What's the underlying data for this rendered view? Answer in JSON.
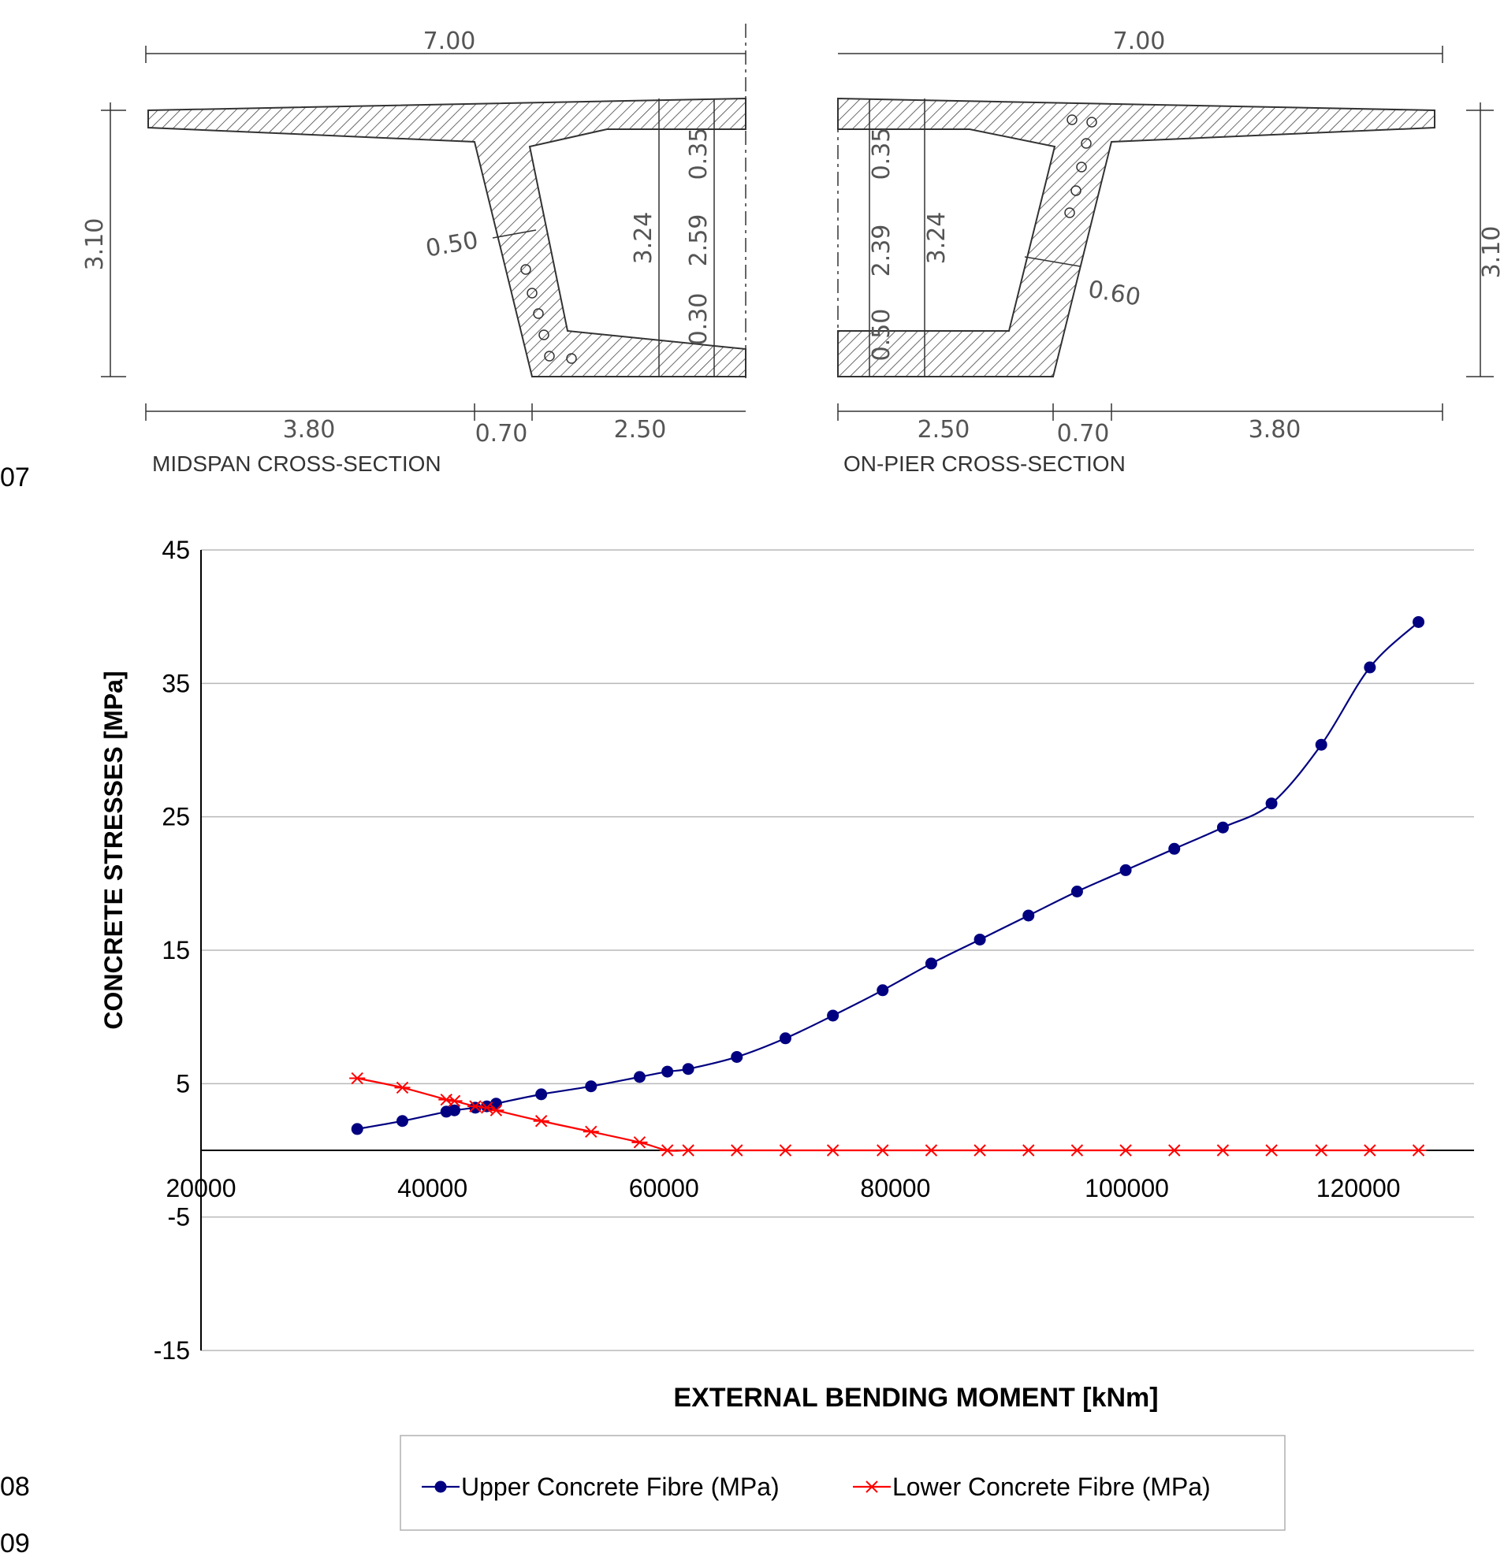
{
  "page": {
    "margin_numbers": [
      "07",
      "08",
      "09"
    ]
  },
  "diagram": {
    "midspan": {
      "caption": "MIDSPAN CROSS-SECTION",
      "top_width": "7.00",
      "height": "3.10",
      "web_thickness": "0.50",
      "top_slab": "0.35",
      "inner_height": "2.59",
      "bottom_slab": "0.30",
      "total_inner": "3.24",
      "bottom_dims": [
        "3.80",
        "0.70",
        "2.50"
      ]
    },
    "onpier": {
      "caption": "ON-PIER CROSS-SECTION",
      "top_width": "7.00",
      "height": "3.10",
      "web_thickness": "0.60",
      "top_slab": "0.35",
      "inner_height": "2.39",
      "bottom_slab": "0.50",
      "total_inner": "3.24",
      "bottom_dims": [
        "2.50",
        "0.70",
        "3.80"
      ]
    }
  },
  "chart_data": {
    "type": "line",
    "title": "",
    "xlabel": "EXTERNAL BENDING MOMENT [kNm]",
    "ylabel": "CONCRETE STRESSES [MPa]",
    "xlim": [
      20000,
      130000
    ],
    "ylim": [
      -15,
      45
    ],
    "xticks": [
      20000,
      40000,
      60000,
      80000,
      100000,
      120000
    ],
    "yticks": [
      -15,
      -5,
      5,
      15,
      25,
      35,
      45
    ],
    "grid": true,
    "legend_position": "bottom",
    "colors": {
      "upper": "#000080",
      "lower": "#ff0000"
    },
    "series": [
      {
        "name": "Upper Concrete Fibre (MPa)",
        "marker": "circle",
        "x": [
          33500,
          37400,
          41200,
          41900,
          43700,
          44700,
          45500,
          49400,
          53700,
          57900,
          60300,
          62100,
          66300,
          70500,
          74600,
          78900,
          83100,
          87300,
          91500,
          95700,
          99900,
          104100,
          108300,
          112500,
          116800,
          121000,
          125200
        ],
        "y": [
          1.6,
          2.2,
          2.9,
          3.0,
          3.2,
          3.3,
          3.5,
          4.2,
          4.8,
          5.5,
          5.9,
          6.1,
          7.0,
          8.4,
          10.1,
          12.0,
          14.0,
          15.8,
          17.6,
          19.4,
          21.0,
          22.6,
          24.2,
          26.0,
          30.4,
          36.2,
          39.6
        ]
      },
      {
        "name": "Lower Concrete Fibre (MPa)",
        "marker": "asterisk",
        "x": [
          33500,
          37400,
          41200,
          41900,
          43700,
          44700,
          45500,
          49400,
          53700,
          57900,
          60300,
          62100,
          66300,
          70500,
          74600,
          78900,
          83100,
          87300,
          91500,
          95700,
          99900,
          104100,
          108300,
          112500,
          116800,
          121000,
          125200
        ],
        "y": [
          5.4,
          4.7,
          3.8,
          3.7,
          3.3,
          3.2,
          3.0,
          2.2,
          1.4,
          0.6,
          0.0,
          0.0,
          0.0,
          0.0,
          0.0,
          0.0,
          0.0,
          0.0,
          0.0,
          0.0,
          0.0,
          0.0,
          0.0,
          0.0,
          0.0,
          0.0,
          0.0
        ]
      }
    ]
  }
}
